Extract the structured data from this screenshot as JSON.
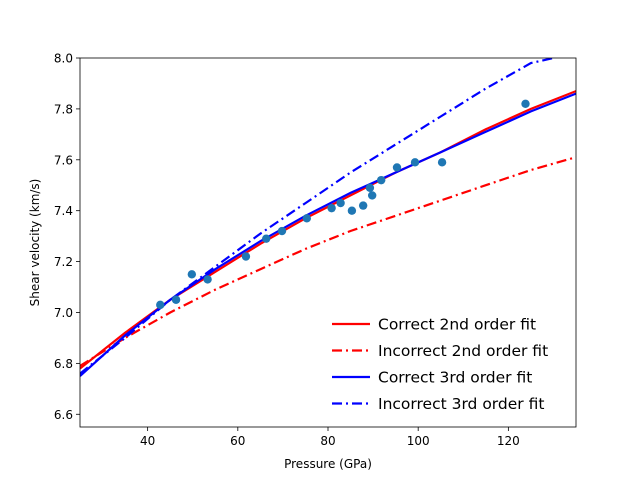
{
  "chart_data": {
    "type": "scatter",
    "xlabel": "Pressure (GPa)",
    "ylabel": "Shear velocity (km/s)",
    "xlim": [
      25,
      135
    ],
    "ylim": [
      6.55,
      8.0
    ],
    "x_ticks": [
      40,
      60,
      80,
      100,
      120
    ],
    "y_ticks": [
      6.6,
      6.8,
      7.0,
      7.2,
      7.4,
      7.6,
      7.8,
      8.0
    ],
    "grid": false,
    "legend_position": "lower-right",
    "points": {
      "color": "#1f77b4",
      "x": [
        42.8,
        46.3,
        49.8,
        53.3,
        61.8,
        66.3,
        69.8,
        75.3,
        80.8,
        82.8,
        85.3,
        87.8,
        89.3,
        89.8,
        91.8,
        95.3,
        99.3,
        105.3,
        123.8
      ],
      "y": [
        7.03,
        7.05,
        7.15,
        7.13,
        7.22,
        7.29,
        7.32,
        7.37,
        7.41,
        7.43,
        7.4,
        7.42,
        7.49,
        7.46,
        7.52,
        7.57,
        7.59,
        7.59,
        7.82
      ]
    },
    "series": [
      {
        "name": "Correct 2nd order fit",
        "color": "#ff0000",
        "dash": "solid",
        "x": [
          25,
          35,
          45,
          55,
          65,
          75,
          85,
          95,
          105,
          115,
          125,
          135
        ],
        "y": [
          6.78,
          6.92,
          7.05,
          7.16,
          7.27,
          7.37,
          7.46,
          7.55,
          7.63,
          7.72,
          7.8,
          7.87
        ]
      },
      {
        "name": "Incorrect 2nd order fit",
        "color": "#ff0000",
        "dash": "dashdot",
        "x": [
          25,
          35,
          45,
          55,
          65,
          75,
          85,
          95,
          105,
          115,
          125,
          135
        ],
        "y": [
          6.79,
          6.9,
          7.0,
          7.09,
          7.17,
          7.25,
          7.32,
          7.38,
          7.44,
          7.5,
          7.56,
          7.61
        ]
      },
      {
        "name": "Correct 3rd order fit",
        "color": "#0000ff",
        "dash": "solid",
        "x": [
          25,
          35,
          45,
          55,
          65,
          75,
          85,
          95,
          105,
          115,
          125,
          135
        ],
        "y": [
          6.75,
          6.91,
          7.05,
          7.17,
          7.28,
          7.38,
          7.47,
          7.55,
          7.63,
          7.71,
          7.79,
          7.86
        ]
      },
      {
        "name": "Incorrect 3rd order fit",
        "color": "#0000ff",
        "dash": "dashdot",
        "x": [
          25,
          35,
          45,
          55,
          65,
          75,
          85,
          95,
          105,
          115,
          125,
          130
        ],
        "y": [
          6.76,
          6.9,
          7.05,
          7.18,
          7.31,
          7.43,
          7.55,
          7.66,
          7.77,
          7.88,
          7.98,
          8.0
        ]
      }
    ]
  }
}
